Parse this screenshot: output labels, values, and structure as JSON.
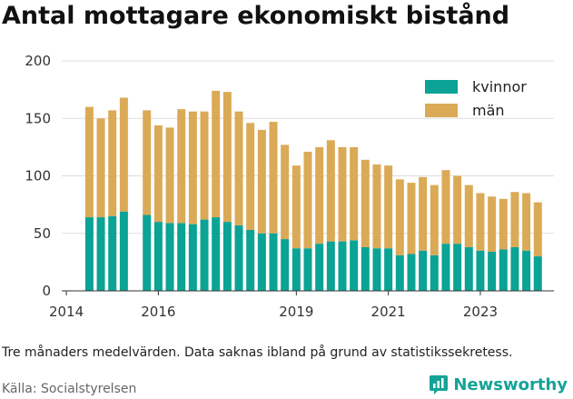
{
  "title": "Antal mottagare ekonomiskt bistånd",
  "note": "Tre månaders medelvärden. Data saknas ibland på grund av statistikssekretess.",
  "source": "Källa: Socialstyrelsen",
  "brand": "Newsworthy",
  "colors": {
    "kvinnor": "#0aa396",
    "man": "#dbaa57",
    "grid": "#dddddd",
    "brand": "#15a397"
  },
  "chart_data": {
    "type": "bar",
    "stacked": true,
    "title": "Antal mottagare ekonomiskt bistånd",
    "ylim": [
      0,
      200
    ],
    "yticks": [
      0,
      50,
      100,
      150,
      200
    ],
    "xlim": [
      2013.9,
      2024.6
    ],
    "xticks": [
      2014,
      2016,
      2019,
      2021,
      2023
    ],
    "grid": "horizontal",
    "legend_position": "top-right",
    "legend": [
      {
        "key": "kvinnor",
        "label": "kvinnor"
      },
      {
        "key": "man",
        "label": "män"
      }
    ],
    "x": [
      2014.5,
      2014.75,
      2015.0,
      2015.25,
      2015.75,
      2016.0,
      2016.25,
      2016.5,
      2016.75,
      2017.0,
      2017.25,
      2017.5,
      2017.75,
      2018.0,
      2018.25,
      2018.5,
      2018.75,
      2019.0,
      2019.25,
      2019.5,
      2019.75,
      2020.0,
      2020.25,
      2020.5,
      2020.75,
      2021.0,
      2021.25,
      2021.5,
      2021.75,
      2022.0,
      2022.25,
      2022.5,
      2022.75,
      2023.0,
      2023.25,
      2023.5,
      2023.75,
      2024.0,
      2024.25
    ],
    "series": [
      {
        "name": "kvinnor",
        "values": [
          64,
          64,
          65,
          69,
          66,
          60,
          59,
          59,
          58,
          62,
          64,
          60,
          57,
          53,
          50,
          50,
          45,
          37,
          37,
          41,
          43,
          43,
          44,
          38,
          37,
          37,
          31,
          32,
          35,
          31,
          41,
          41,
          38,
          35,
          34,
          36,
          38,
          35,
          30
        ]
      },
      {
        "name": "män",
        "values": [
          96,
          86,
          92,
          99,
          91,
          84,
          83,
          99,
          98,
          94,
          110,
          113,
          99,
          93,
          90,
          97,
          82,
          72,
          84,
          84,
          88,
          82,
          81,
          76,
          73,
          72,
          66,
          62,
          64,
          61,
          64,
          59,
          54,
          50,
          48,
          44,
          48,
          50,
          47
        ]
      }
    ]
  }
}
